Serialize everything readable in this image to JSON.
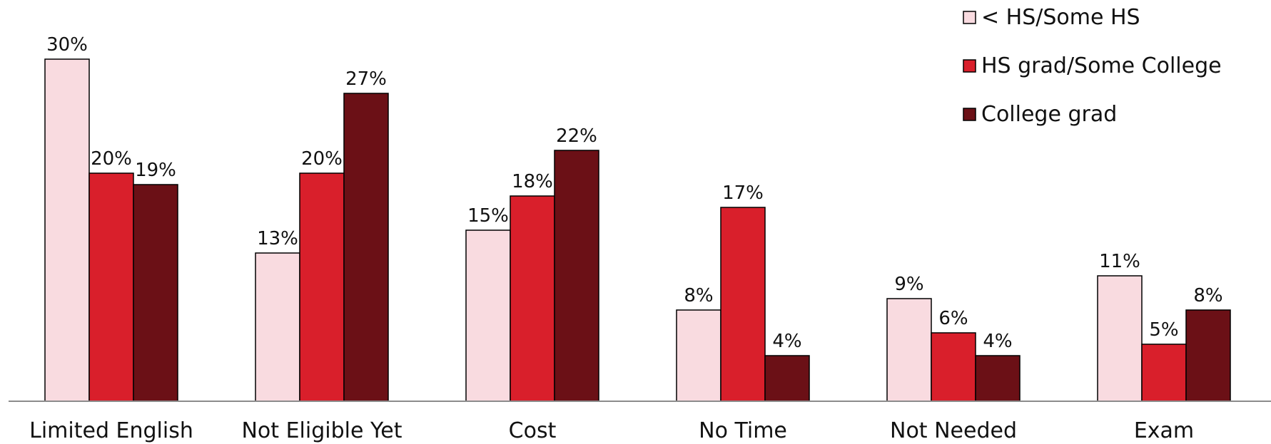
{
  "chart_data": {
    "type": "bar",
    "categories": [
      "Limited English",
      "Not Eligible Yet",
      "Cost",
      "No Time",
      "Not Needed",
      "Exam"
    ],
    "series": [
      {
        "name": "< HS/Some HS",
        "color": "#f9dbe0",
        "values": [
          30,
          13,
          15,
          8,
          9,
          11
        ],
        "labels": [
          "30%",
          "13%",
          "15%",
          "8%",
          "9%",
          "11%"
        ]
      },
      {
        "name": "HS grad/Some College",
        "color": "#d91f2b",
        "values": [
          20,
          20,
          18,
          17,
          6,
          5
        ],
        "labels": [
          "20%",
          "20%",
          "18%",
          "17%",
          "6%",
          "5%"
        ]
      },
      {
        "name": "College grad",
        "color": "#6b1016",
        "values": [
          19,
          27,
          22,
          4,
          4,
          8
        ],
        "labels": [
          "19%",
          "27%",
          "22%",
          "4%",
          "4%",
          "8%"
        ]
      }
    ],
    "ylim": [
      0,
      34
    ],
    "grid": false,
    "legend": "top-right",
    "bar_outline_color": "#000000"
  }
}
